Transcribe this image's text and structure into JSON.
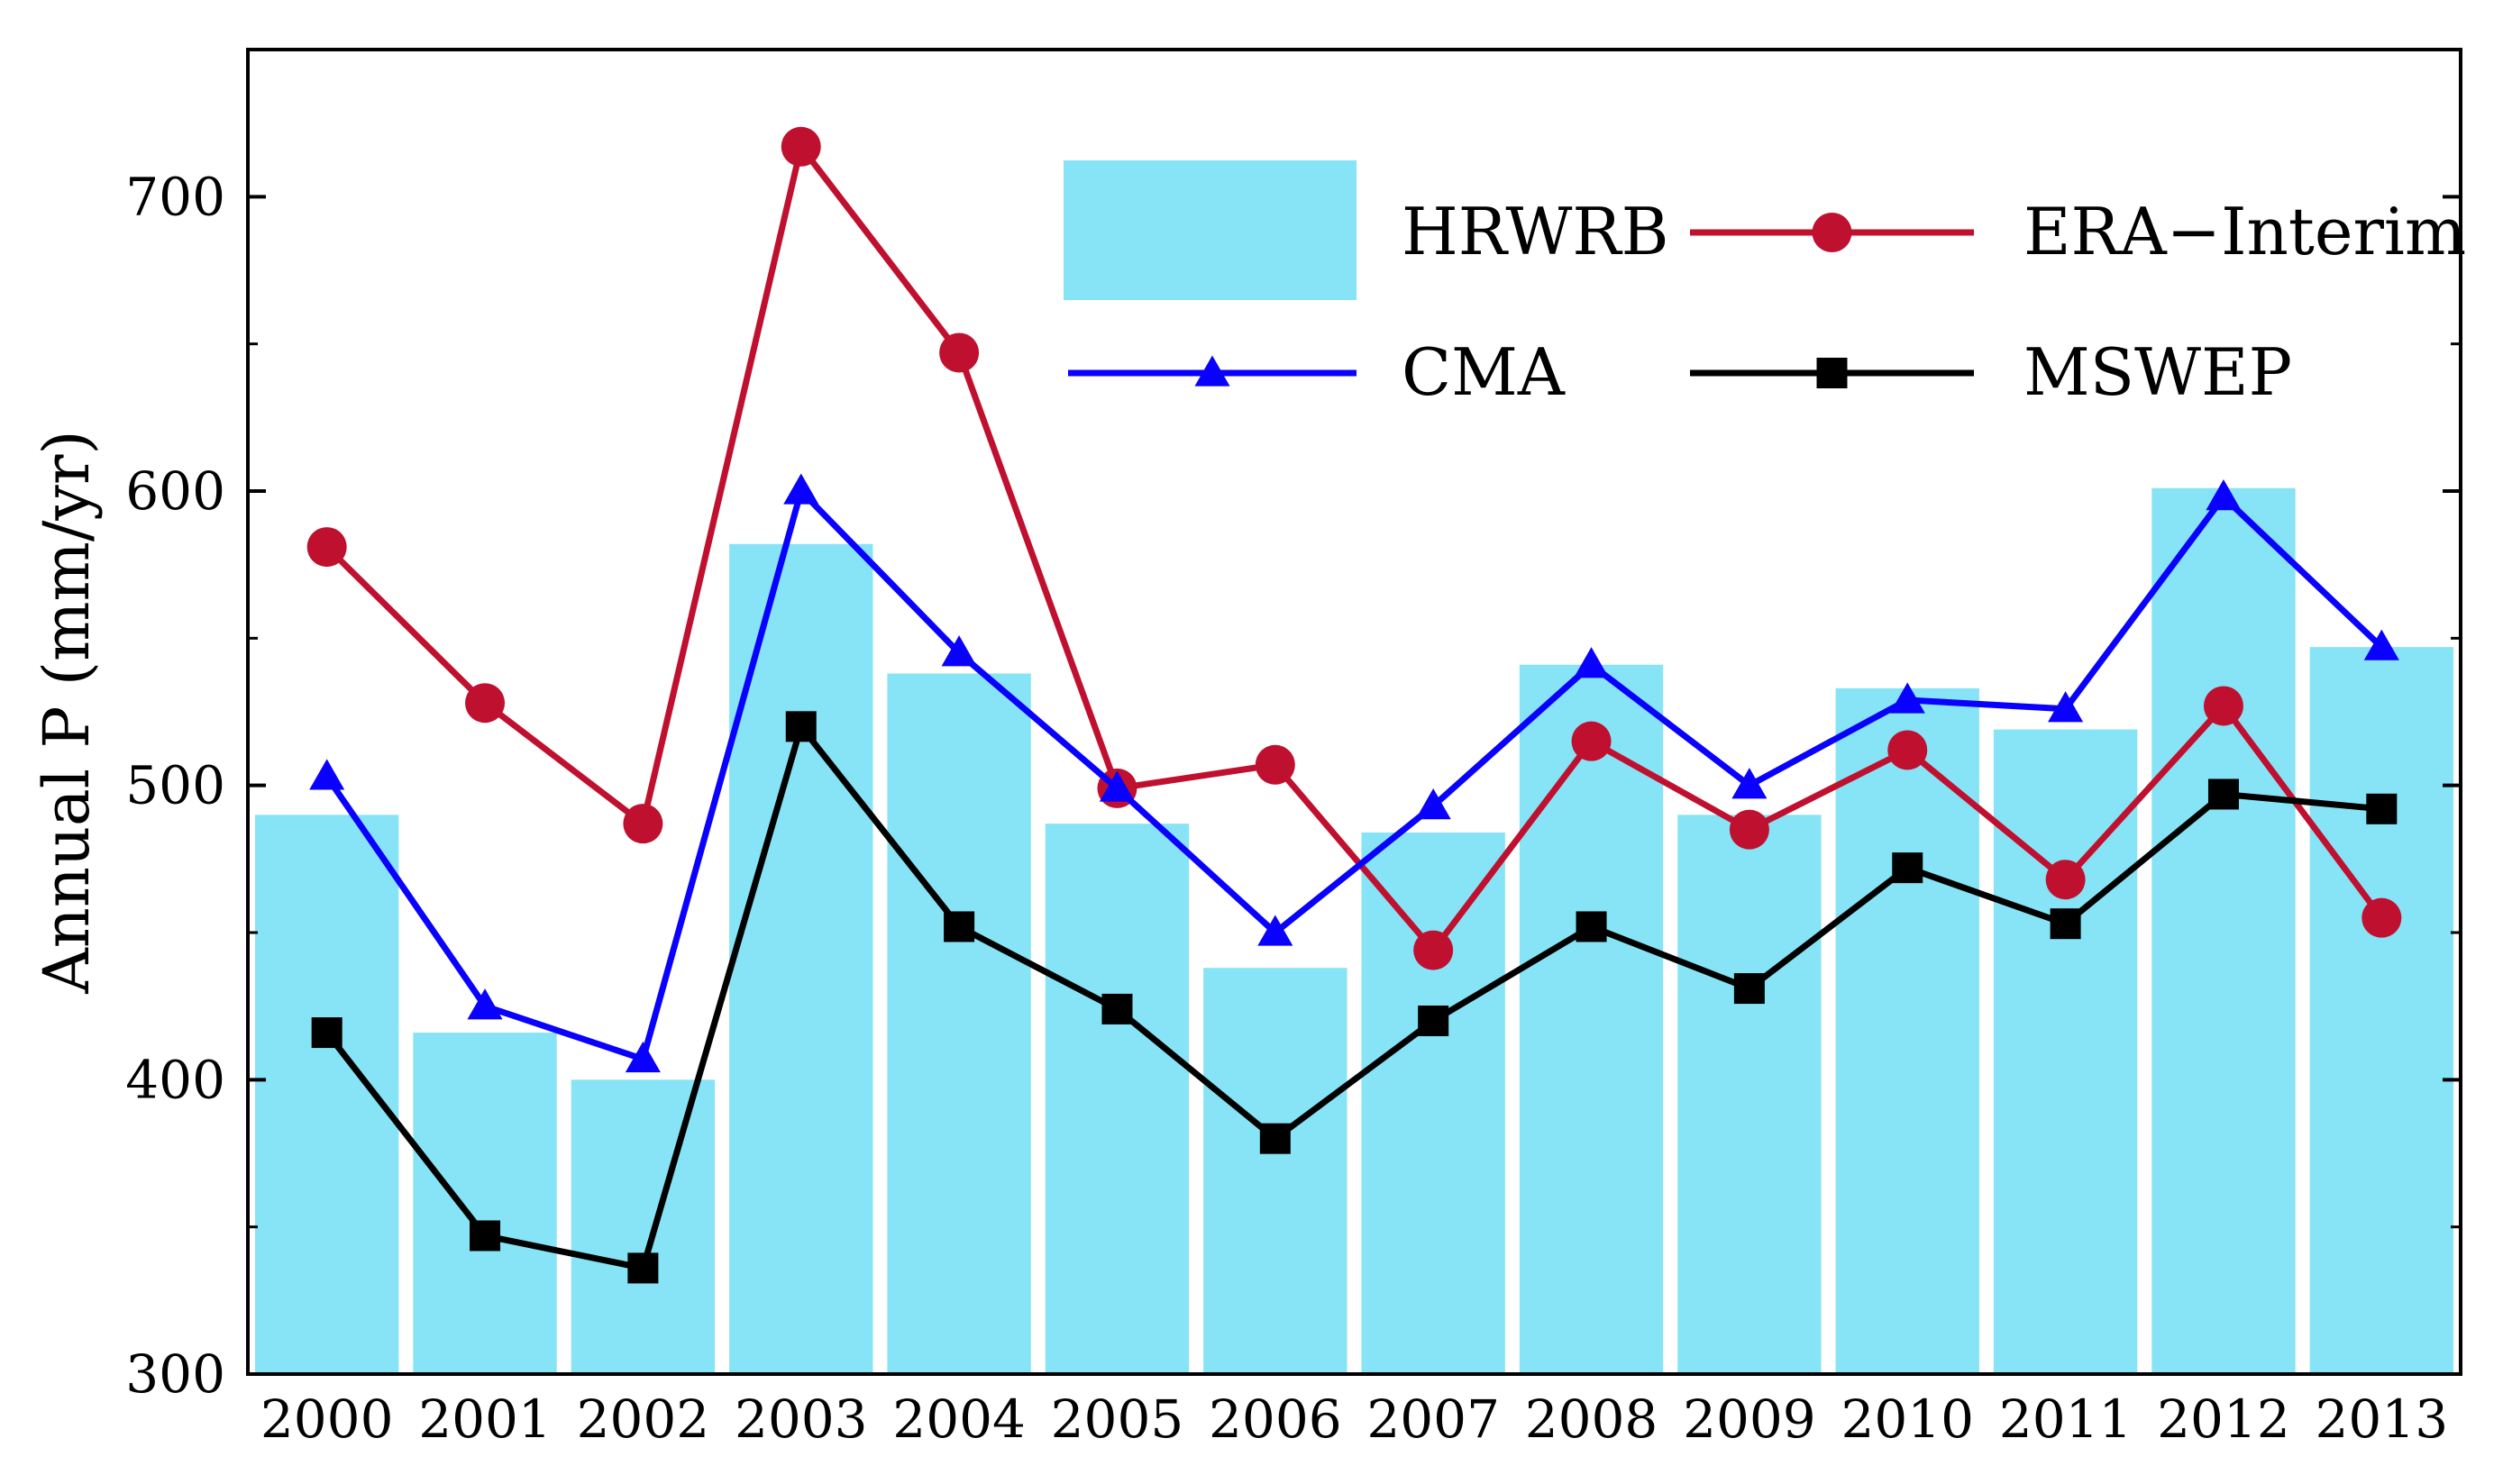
{
  "chart_data": {
    "type": "bar",
    "title": "",
    "xlabel": "",
    "ylabel": "Annual P (mm/yr)",
    "ylim": [
      300,
      750
    ],
    "yticks": [
      300,
      400,
      500,
      600,
      700
    ],
    "categories": [
      "2000",
      "2001",
      "2002",
      "2003",
      "2004",
      "2005",
      "2006",
      "2007",
      "2008",
      "2009",
      "2010",
      "2011",
      "2012",
      "2013"
    ],
    "bars": {
      "name": "HRWRB",
      "color": "#86e4f6",
      "values": [
        490,
        416,
        400,
        582,
        538,
        487,
        438,
        484,
        541,
        490,
        533,
        519,
        601,
        547
      ]
    },
    "series": [
      {
        "name": "ERA−Interim",
        "color": "#c0102f",
        "marker": "circle",
        "values": [
          581,
          528,
          487,
          717,
          647,
          499,
          507,
          444,
          515,
          485,
          512,
          468,
          527,
          455
        ]
      },
      {
        "name": "CMA",
        "color": "#0a00ff",
        "marker": "triangle",
        "values": [
          503,
          425,
          407,
          600,
          545,
          499,
          450,
          493,
          541,
          500,
          529,
          526,
          598,
          547
        ]
      },
      {
        "name": "MSWEP",
        "color": "#000000",
        "marker": "square",
        "values": [
          416,
          347,
          336,
          520,
          452,
          424,
          380,
          420,
          452,
          431,
          472,
          453,
          497,
          492
        ]
      }
    ],
    "legend": {
      "position": "top-right",
      "items": [
        "HRWRB",
        "ERA−Interim",
        "CMA",
        "MSWEP"
      ]
    },
    "grid": false
  }
}
